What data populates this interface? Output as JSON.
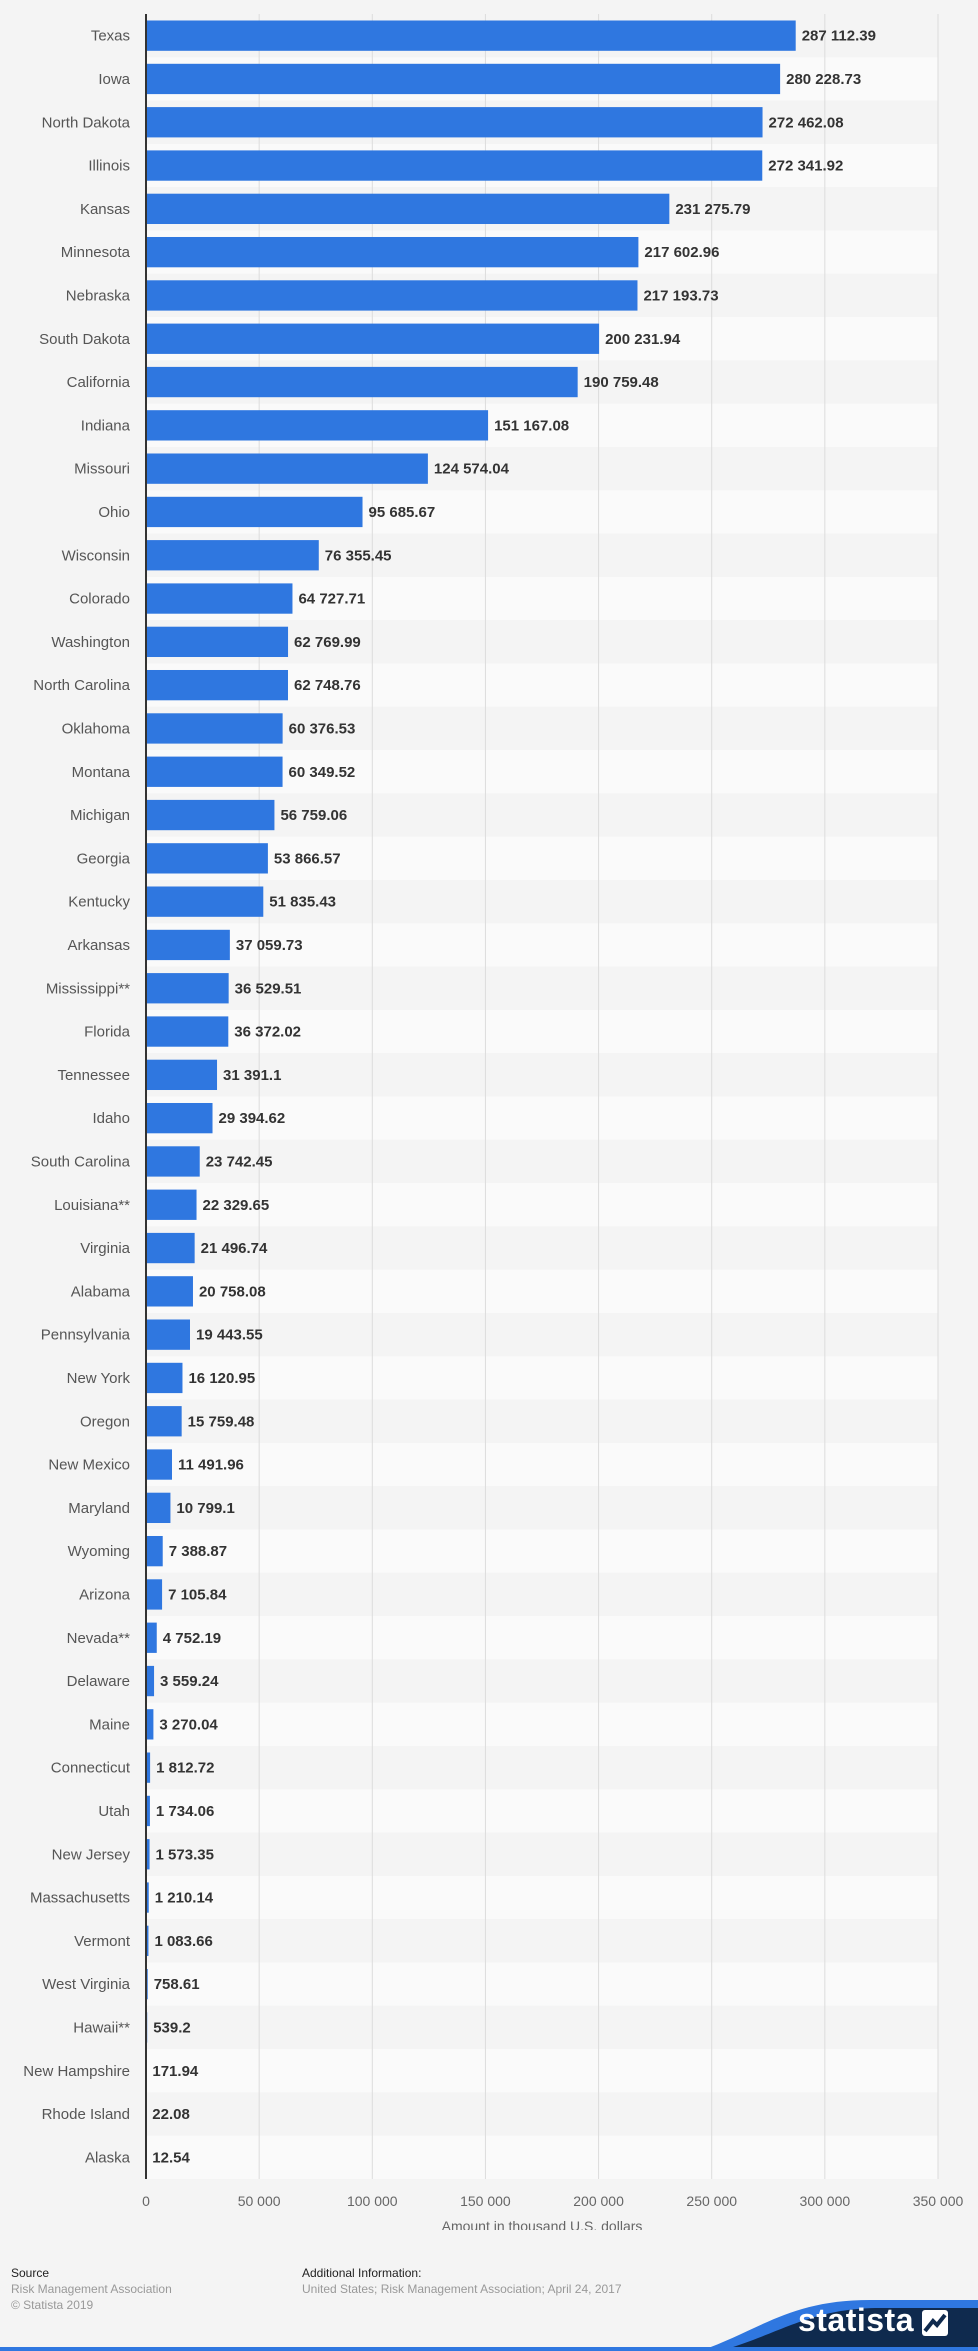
{
  "chart_data": {
    "type": "bar",
    "orientation": "horizontal",
    "categories": [
      "Texas",
      "Iowa",
      "North Dakota",
      "Illinois",
      "Kansas",
      "Minnesota",
      "Nebraska",
      "South Dakota",
      "California",
      "Indiana",
      "Missouri",
      "Ohio",
      "Wisconsin",
      "Colorado",
      "Washington",
      "North Carolina",
      "Oklahoma",
      "Montana",
      "Michigan",
      "Georgia",
      "Kentucky",
      "Arkansas",
      "Mississippi**",
      "Florida",
      "Tennessee",
      "Idaho",
      "South Carolina",
      "Louisiana**",
      "Virginia",
      "Alabama",
      "Pennsylvania",
      "New York",
      "Oregon",
      "New Mexico",
      "Maryland",
      "Wyoming",
      "Arizona",
      "Nevada**",
      "Delaware",
      "Maine",
      "Connecticut",
      "Utah",
      "New Jersey",
      "Massachusetts",
      "Vermont",
      "West Virginia",
      "Hawaii**",
      "New Hampshire",
      "Rhode Island",
      "Alaska"
    ],
    "values": [
      287112.39,
      280228.73,
      272462.08,
      272341.92,
      231275.79,
      217602.96,
      217193.73,
      200231.94,
      190759.48,
      151167.08,
      124574.04,
      95685.67,
      76355.45,
      64727.71,
      62769.99,
      62748.76,
      60376.53,
      60349.52,
      56759.06,
      53866.57,
      51835.43,
      37059.73,
      36529.51,
      36372.02,
      31391.1,
      29394.62,
      23742.45,
      22329.65,
      21496.74,
      20758.08,
      19443.55,
      16120.95,
      15759.48,
      11491.96,
      10799.1,
      7388.87,
      7105.84,
      4752.19,
      3559.24,
      3270.04,
      1812.72,
      1734.06,
      1573.35,
      1210.14,
      1083.66,
      758.61,
      539.2,
      171.94,
      22.08,
      12.54
    ],
    "value_labels": [
      "287 112.39",
      "280 228.73",
      "272 462.08",
      "272 341.92",
      "231 275.79",
      "217 602.96",
      "217 193.73",
      "200 231.94",
      "190 759.48",
      "151 167.08",
      "124 574.04",
      "95 685.67",
      "76 355.45",
      "64 727.71",
      "62 769.99",
      "62 748.76",
      "60 376.53",
      "60 349.52",
      "56 759.06",
      "53 866.57",
      "51 835.43",
      "37 059.73",
      "36 529.51",
      "36 372.02",
      "31 391.1",
      "29 394.62",
      "23 742.45",
      "22 329.65",
      "21 496.74",
      "20 758.08",
      "19 443.55",
      "16 120.95",
      "15 759.48",
      "11 491.96",
      "10 799.1",
      "7 388.87",
      "7 105.84",
      "4 752.19",
      "3 559.24",
      "3 270.04",
      "1 812.72",
      "1 734.06",
      "1 573.35",
      "1 210.14",
      "1 083.66",
      "758.61",
      "539.2",
      "171.94",
      "22.08",
      "12.54"
    ],
    "xlabel": "Amount in thousand U.S. dollars",
    "ylabel": "",
    "xlim": [
      0,
      350000
    ],
    "ticks": [
      0,
      50000,
      100000,
      150000,
      200000,
      250000,
      300000,
      350000
    ],
    "tick_labels": [
      "0",
      "50 000",
      "100 000",
      "150 000",
      "200 000",
      "250 000",
      "300 000",
      "350 000"
    ],
    "grid": true,
    "bar_color": "#2f77e0",
    "alt_row_color": "#fafafa"
  },
  "footer": {
    "source_heading": "Source",
    "source_lines": [
      "Risk Management Association",
      "© Statista 2019"
    ],
    "additional_heading": "Additional Information:",
    "additional_text": "United States; Risk Management Association; April 24, 2017",
    "brand": "statista",
    "brand_colors": {
      "dark": "#0f2a4e",
      "accent": "#2f77e0"
    }
  }
}
